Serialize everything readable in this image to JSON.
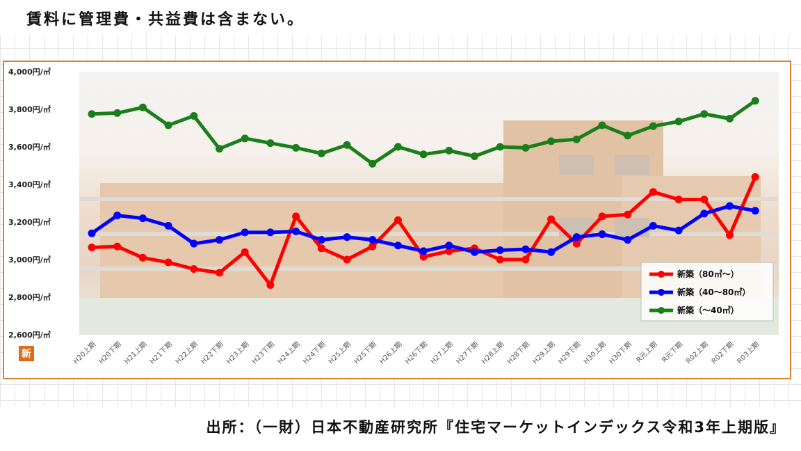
{
  "header": {
    "note": "賃料に管理費・共益費は含まない。"
  },
  "footer": {
    "source": "出所：（一財）日本不動産研究所『住宅マーケットインデックス令和3年上期版』"
  },
  "logo": {
    "icon": "shin-logo-icon",
    "glyph": "新",
    "color": "#e06a1b"
  },
  "chart_data": {
    "type": "line",
    "categories": [
      "H20上期",
      "H20下期",
      "H21上期",
      "H21下期",
      "H22上期",
      "H22下期",
      "H23上期",
      "H23下期",
      "H24上期",
      "H24下期",
      "H25上期",
      "H25下期",
      "H26上期",
      "H26下期",
      "H27上期",
      "H27下期",
      "H28上期",
      "H28下期",
      "H29上期",
      "H29下期",
      "H30上期",
      "H30下期",
      "R元上期",
      "R元下期",
      "R02上期",
      "R02下期",
      "R03上期"
    ],
    "ylim": [
      2600,
      4000
    ],
    "yticks": [
      2600,
      2800,
      3000,
      3200,
      3400,
      3600,
      3800,
      4000
    ],
    "ytick_labels": [
      "2,600円/㎡",
      "2,800円/㎡",
      "3,000円/㎡",
      "3,200円/㎡",
      "3,400円/㎡",
      "3,600円/㎡",
      "3,800円/㎡",
      "4,000円/㎡"
    ],
    "legend_position": "bottom-right",
    "series": [
      {
        "name": "新築（80㎡〜）",
        "color": "#ff0000",
        "values": [
          3065,
          3070,
          3010,
          2985,
          2950,
          2930,
          3040,
          2865,
          3230,
          3060,
          3000,
          3070,
          3210,
          3015,
          3045,
          3060,
          3000,
          3000,
          3215,
          3085,
          3230,
          3240,
          3360,
          3320,
          3320,
          3130,
          3440
        ]
      },
      {
        "name": "新築（40〜80㎡）",
        "color": "#0000ff",
        "values": [
          3140,
          3235,
          3220,
          3180,
          3085,
          3105,
          3145,
          3145,
          3150,
          3105,
          3120,
          3105,
          3075,
          3045,
          3075,
          3040,
          3050,
          3055,
          3040,
          3120,
          3135,
          3105,
          3180,
          3155,
          3245,
          3285,
          3260
        ]
      },
      {
        "name": "新築（〜40㎡）",
        "color": "#1a7f1a",
        "values": [
          3775,
          3780,
          3810,
          3715,
          3765,
          3590,
          3645,
          3620,
          3595,
          3565,
          3610,
          3510,
          3600,
          3560,
          3580,
          3550,
          3600,
          3595,
          3630,
          3640,
          3715,
          3660,
          3710,
          3735,
          3775,
          3750,
          3845
        ]
      }
    ]
  }
}
